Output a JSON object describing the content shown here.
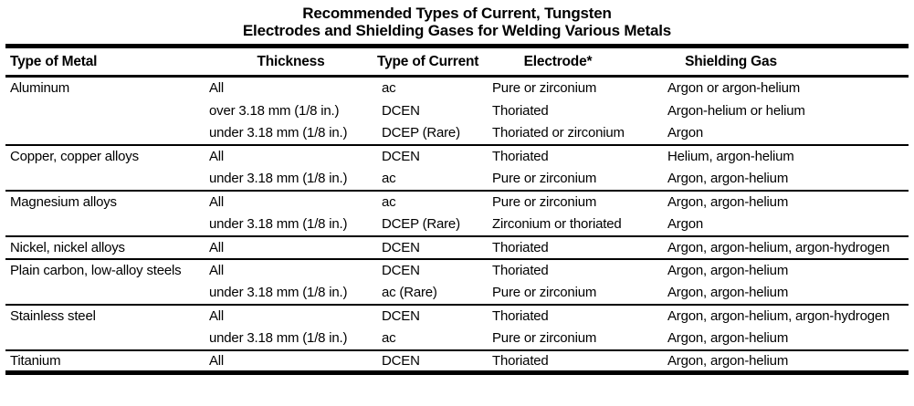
{
  "title": {
    "line1": "Recommended Types of Current, Tungsten",
    "line2": "Electrodes and Shielding Gases for Welding Various Metals"
  },
  "table": {
    "columns": [
      "Type of Metal",
      "Thickness",
      "Type of Current",
      "Electrode*",
      "Shielding Gas"
    ],
    "groups": [
      {
        "metal": "Aluminum",
        "rows": [
          {
            "thickness": "All",
            "current": "ac",
            "electrode": "Pure or zirconium",
            "gas": "Argon or argon-helium"
          },
          {
            "thickness": "over 3.18 mm (1/8 in.)",
            "current": "DCEN",
            "electrode": "Thoriated",
            "gas": "Argon-helium or helium"
          },
          {
            "thickness": "under 3.18 mm (1/8 in.)",
            "current": "DCEP (Rare)",
            "electrode": "Thoriated or zirconium",
            "gas": "Argon"
          }
        ]
      },
      {
        "metal": "Copper, copper alloys",
        "rows": [
          {
            "thickness": "All",
            "current": "DCEN",
            "electrode": "Thoriated",
            "gas": "Helium, argon-helium"
          },
          {
            "thickness": "under 3.18 mm (1/8 in.)",
            "current": "ac",
            "electrode": "Pure or zirconium",
            "gas": "Argon, argon-helium"
          }
        ]
      },
      {
        "metal": "Magnesium alloys",
        "rows": [
          {
            "thickness": "All",
            "current": "ac",
            "electrode": "Pure or zirconium",
            "gas": "Argon, argon-helium"
          },
          {
            "thickness": "under 3.18 mm (1/8 in.)",
            "current": "DCEP (Rare)",
            "electrode": "Zirconium or thoriated",
            "gas": "Argon"
          }
        ]
      },
      {
        "metal": "Nickel, nickel alloys",
        "rows": [
          {
            "thickness": "All",
            "current": "DCEN",
            "electrode": "Thoriated",
            "gas": "Argon, argon-helium, argon-hydrogen"
          }
        ]
      },
      {
        "metal": "Plain carbon, low-alloy steels",
        "rows": [
          {
            "thickness": "All",
            "current": "DCEN",
            "electrode": "Thoriated",
            "gas": "Argon, argon-helium"
          },
          {
            "thickness": "under 3.18 mm (1/8 in.)",
            "current": "ac (Rare)",
            "electrode": "Pure or zirconium",
            "gas": "Argon, argon-helium"
          }
        ]
      },
      {
        "metal": "Stainless steel",
        "rows": [
          {
            "thickness": "All",
            "current": "DCEN",
            "electrode": "Thoriated",
            "gas": "Argon, argon-helium, argon-hydrogen"
          },
          {
            "thickness": "under 3.18 mm (1/8 in.)",
            "current": "ac",
            "electrode": "Pure or zirconium",
            "gas": "Argon, argon-helium"
          }
        ]
      },
      {
        "metal": "Titanium",
        "rows": [
          {
            "thickness": "All",
            "current": "DCEN",
            "electrode": "Thoriated",
            "gas": "Argon, argon-helium"
          }
        ]
      }
    ]
  },
  "colors": {
    "text": "#000000",
    "background": "#ffffff",
    "rule": "#000000"
  }
}
